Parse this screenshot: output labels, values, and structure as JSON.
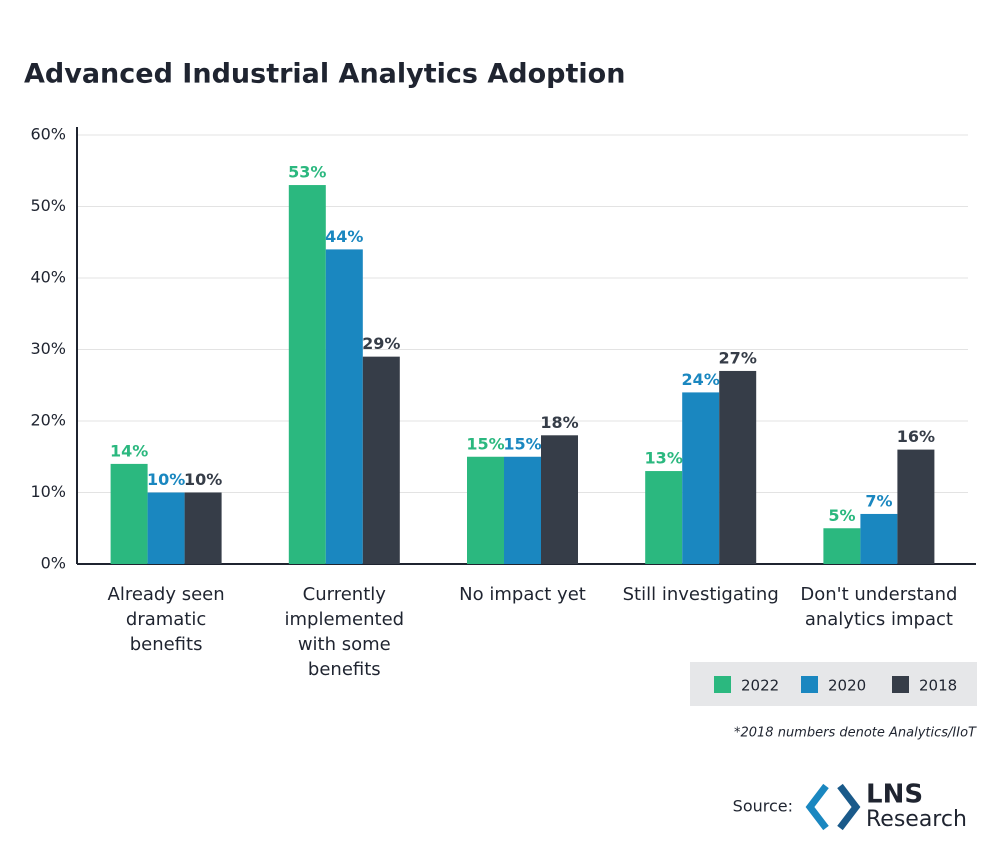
{
  "chart_data": {
    "type": "bar",
    "title": "Advanced Industrial Analytics Adoption",
    "categories": [
      "Already seen dramatic benefits",
      "Currently implemented with some benefits",
      "No impact yet",
      "Still investigating",
      "Don't understand analytics impact"
    ],
    "series": [
      {
        "name": "2022",
        "color": "#2bb87f",
        "values": [
          14,
          53,
          15,
          13,
          5
        ],
        "value_labels": [
          "14%",
          "53%",
          "15%",
          "13%",
          "5%"
        ]
      },
      {
        "name": "2020",
        "color": "#1a87c0",
        "values": [
          10,
          44,
          15,
          24,
          7
        ],
        "value_labels": [
          "10%",
          "44%",
          "15%",
          "24%",
          "7%"
        ]
      },
      {
        "name": "2018",
        "color": "#363d48",
        "values": [
          10,
          29,
          18,
          27,
          16
        ],
        "value_labels": [
          "10%",
          "29%",
          "18%",
          "27%",
          "16%"
        ]
      }
    ],
    "ylim": [
      0,
      60
    ],
    "yticks": [
      {
        "value": 0,
        "label": "0%"
      },
      {
        "value": 10,
        "label": "10%"
      },
      {
        "value": 20,
        "label": "20%"
      },
      {
        "value": 30,
        "label": "30%"
      },
      {
        "value": 40,
        "label": "40%"
      },
      {
        "value": 50,
        "label": "50%"
      },
      {
        "value": 60,
        "label": "60%"
      }
    ],
    "grid": true,
    "legend": "bottom-right",
    "footnote": "*2018 numbers denote Analytics/IIoT",
    "source_label": "Source:",
    "logo_text": "LNS",
    "logo_subtext": "Research"
  }
}
